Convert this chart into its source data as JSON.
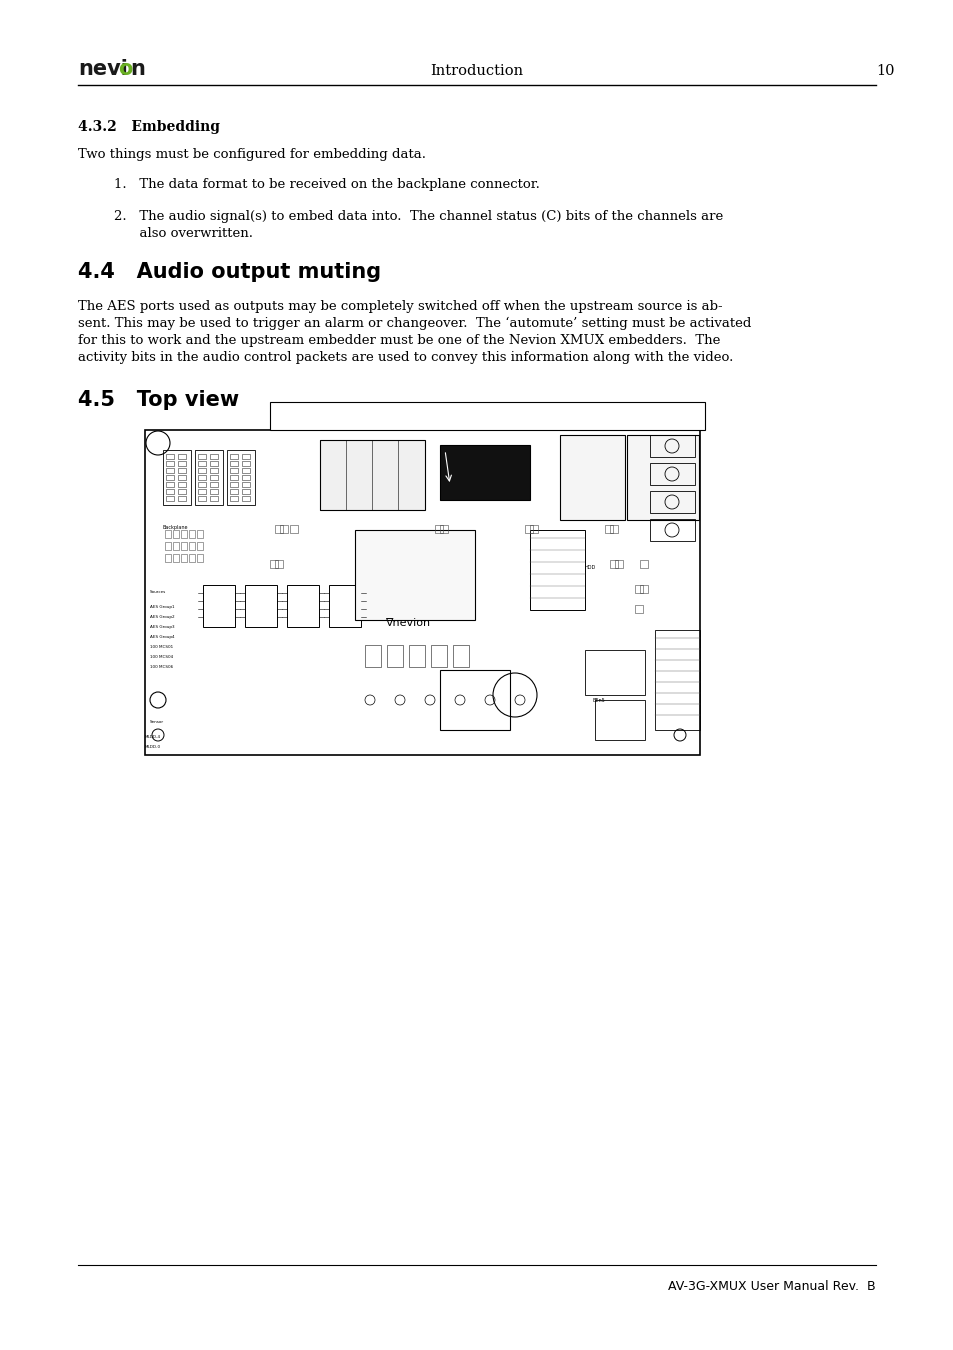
{
  "bg_color": "#ffffff",
  "text_color": "#000000",
  "logo_nevi": "nevi",
  "logo_o": "o",
  "logo_n": "n",
  "logo_color_main": "#1a1a1a",
  "logo_color_o": "#6ab023",
  "header_center_text": "Introduction",
  "header_right_text": "10",
  "footer_right_text": "AV-3G-XMUX User Manual Rev.  B",
  "section_432_title": "4.3.2   Embedding",
  "section_432_body": "Two things must be configured for embedding data.",
  "item1": "1.   The data format to be received on the backplane connector.",
  "item2_line1": "2.   The audio signal(s) to embed data into.  The channel status (C) bits of the channels are",
  "item2_line2": "      also overwritten.",
  "section_44_title": "4.4   Audio output muting",
  "section_44_body_line1": "The AES ports used as outputs may be completely switched off when the upstream source is ab-",
  "section_44_body_line2": "sent. This may be used to trigger an alarm or changeover.  The ‘automute’ setting must be activated",
  "section_44_body_line3": "for this to work and the upstream embedder must be one of the Nevion XMUX embedders.  The",
  "section_44_body_line4": "activity bits in the audio control packets are used to convey this information along with the video.",
  "section_45_title": "4.5   Top view"
}
